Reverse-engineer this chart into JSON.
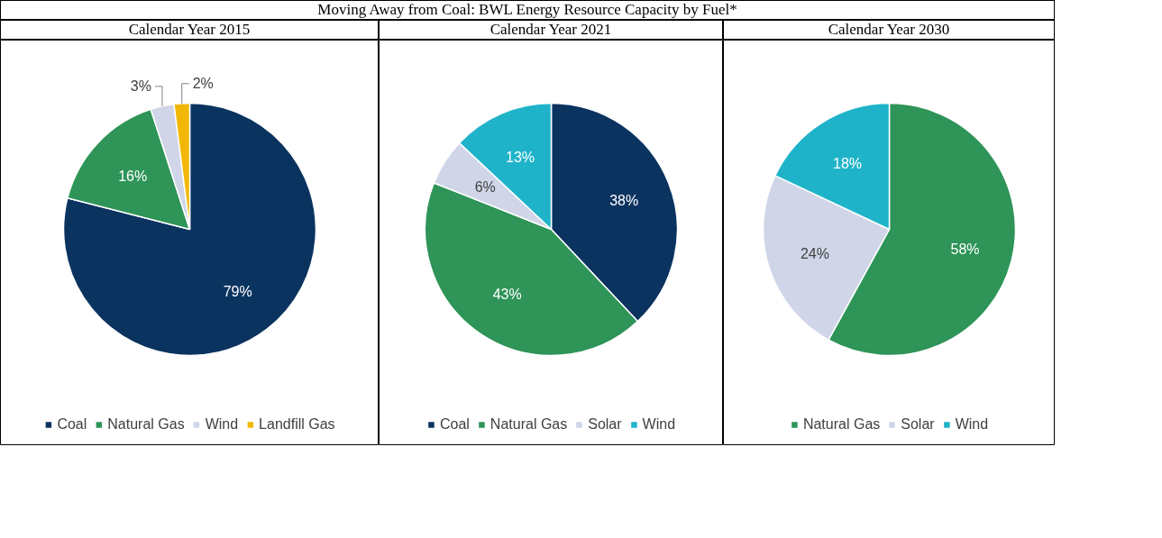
{
  "chart_data": [
    {
      "type": "other",
      "title": "Moving Away from Coal: BWL Energy Resource Capacity by Fuel*"
    },
    {
      "type": "pie",
      "subtitle": "Calendar Year 2015",
      "categories": [
        "Coal",
        "Natural Gas",
        "Wind",
        "Landfill Gas"
      ],
      "values": [
        79,
        16,
        3,
        2
      ],
      "colors": [
        "#0b3360",
        "#2e9457",
        "#d0d6e8",
        "#f2b705"
      ],
      "value_labels": [
        "79%",
        "16%",
        "3%",
        "2%"
      ],
      "legend": "bottom"
    },
    {
      "type": "pie",
      "subtitle": "Calendar Year 2021",
      "categories": [
        "Coal",
        "Natural Gas",
        "Solar",
        "Wind"
      ],
      "values": [
        38,
        43,
        6,
        13
      ],
      "colors": [
        "#0b3360",
        "#2e9457",
        "#d0d6e8",
        "#1fb3c9"
      ],
      "value_labels": [
        "38%",
        "43%",
        "6%",
        "13%"
      ],
      "legend": "bottom"
    },
    {
      "type": "pie",
      "subtitle": "Calendar Year 2030",
      "categories": [
        "Natural Gas",
        "Solar",
        "Wind"
      ],
      "values": [
        58,
        24,
        18
      ],
      "colors": [
        "#2e9457",
        "#d0d6e8",
        "#1fb3c9"
      ],
      "value_labels": [
        "58%",
        "24%",
        "18%"
      ],
      "legend": "bottom"
    }
  ]
}
